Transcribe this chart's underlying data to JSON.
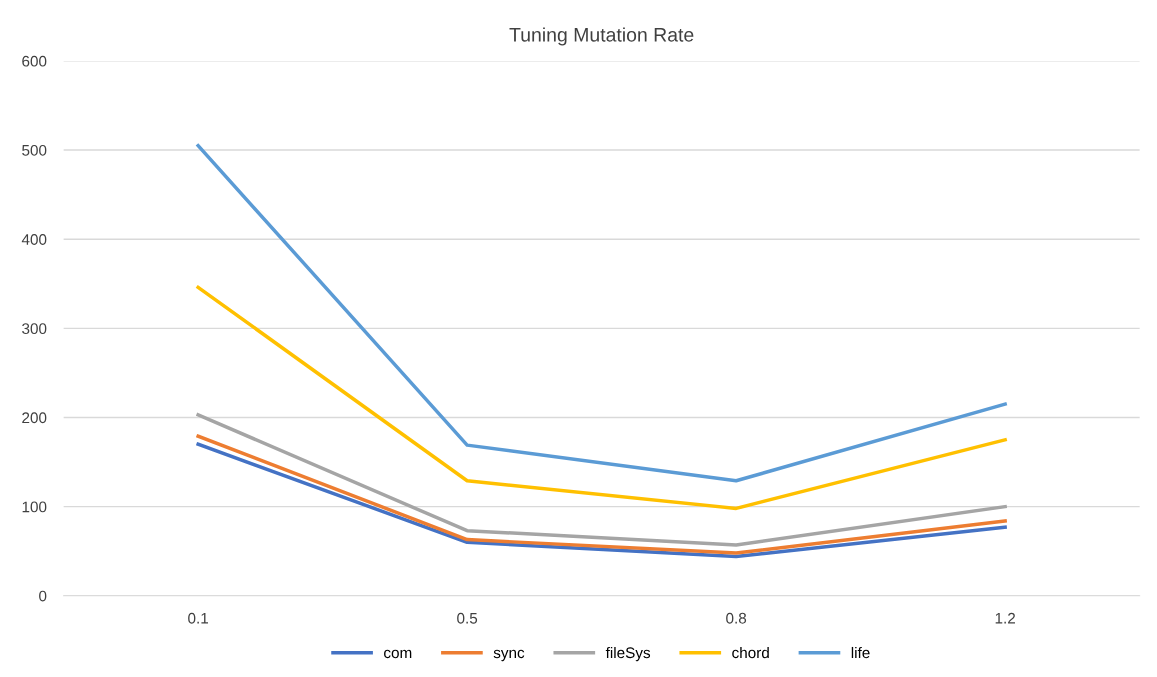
{
  "chart_data": {
    "type": "line",
    "title": "Tuning Mutation Rate",
    "categories": [
      "0.1",
      "0.5",
      "0.8",
      "1.2"
    ],
    "series": [
      {
        "name": "com",
        "color": "#4472c4",
        "values": [
          170,
          60,
          44,
          77
        ]
      },
      {
        "name": "sync",
        "color": "#ed7d31",
        "values": [
          179,
          63,
          48,
          84
        ]
      },
      {
        "name": "fileSys",
        "color": "#a5a5a5",
        "values": [
          203,
          73,
          57,
          100
        ]
      },
      {
        "name": "chord",
        "color": "#ffc000",
        "values": [
          346,
          129,
          98,
          175
        ]
      },
      {
        "name": "life",
        "color": "#5b9bd5",
        "values": [
          505,
          169,
          129,
          215
        ]
      }
    ],
    "ylim": [
      0,
      600
    ],
    "yticks": [
      0,
      100,
      200,
      300,
      400,
      500,
      600
    ],
    "grid": "y",
    "legend": "bottom",
    "marker": "none",
    "line_style": "solid"
  }
}
